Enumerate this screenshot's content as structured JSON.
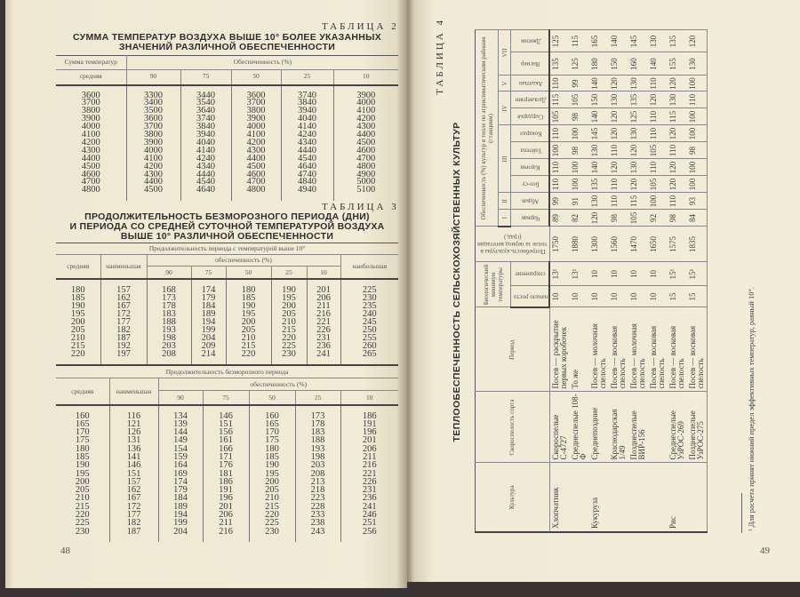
{
  "left_page": {
    "page_number": "48",
    "table2": {
      "label": "ТАБЛИЦА 2",
      "title_lines": [
        "СУММА ТЕМПЕРАТУР ВОЗДУХА ВЫШЕ 10° БОЛЕЕ УКАЗАННЫХ",
        "ЗНАЧЕНИЙ РАЗЛИЧНОЙ ОБЕСПЕЧЕННОСТИ"
      ],
      "header": {
        "group_sum": "Сумма температур",
        "group_prob": "Обеспеченность (%)",
        "col_mean": "средняя",
        "pct": [
          "90",
          "75",
          "50",
          "25",
          "10"
        ]
      },
      "rows": [
        [
          "3600",
          "3300",
          "3440",
          "3600",
          "3740",
          "3900"
        ],
        [
          "3700",
          "3400",
          "3540",
          "3700",
          "3840",
          "4000"
        ],
        [
          "3800",
          "3500",
          "3640",
          "3800",
          "3940",
          "4100"
        ],
        [
          "3900",
          "3600",
          "3740",
          "3900",
          "4040",
          "4200"
        ],
        [
          "4000",
          "3700",
          "3840",
          "4000",
          "4140",
          "4300"
        ],
        [
          "4100",
          "3800",
          "3940",
          "4100",
          "4240",
          "4400"
        ],
        [
          "4200",
          "3900",
          "4040",
          "4200",
          "4340",
          "4500"
        ],
        [
          "4300",
          "4000",
          "4140",
          "4300",
          "4440",
          "4600"
        ],
        [
          "4400",
          "4100",
          "4240",
          "4400",
          "4540",
          "4700"
        ],
        [
          "4500",
          "4200",
          "4340",
          "4500",
          "4640",
          "4800"
        ],
        [
          "4600",
          "4300",
          "4440",
          "4600",
          "4740",
          "4900"
        ],
        [
          "4700",
          "4400",
          "4540",
          "4700",
          "4840",
          "5000"
        ],
        [
          "4800",
          "4500",
          "4640",
          "4800",
          "4940",
          "5100"
        ]
      ]
    },
    "table3": {
      "label": "ТАБЛИЦА 3",
      "title_lines": [
        "ПРОДОЛЖИТЕЛЬНОСТЬ БЕЗМОРОЗНОГО ПЕРИОДА (ДНИ)",
        "И ПЕРИОДА СО СРЕДНЕЙ СУТОЧНОЙ ТЕМПЕРАТУРОЙ ВОЗДУХА",
        "ВЫШЕ 10° РАЗЛИЧНОЙ ОБЕСПЕЧЕННОСТИ"
      ],
      "part1": {
        "caption": "Продолжительность периода с температурой выше 10°",
        "col_mean": "средняя",
        "col_min": "наименьшая",
        "group_prob": "обеспеченность (%)",
        "col_max": "наибольшая",
        "pct": [
          "90",
          "75",
          "50",
          "25",
          "10"
        ],
        "rows": [
          [
            "180",
            "157",
            "168",
            "174",
            "180",
            "190",
            "201",
            "225"
          ],
          [
            "185",
            "162",
            "173",
            "179",
            "185",
            "195",
            "206",
            "230"
          ],
          [
            "190",
            "167",
            "178",
            "184",
            "190",
            "200",
            "211",
            "235"
          ],
          [
            "195",
            "172",
            "183",
            "189",
            "195",
            "205",
            "216",
            "240"
          ],
          [
            "200",
            "177",
            "188",
            "194",
            "200",
            "210",
            "221",
            "245"
          ],
          [
            "205",
            "182",
            "193",
            "199",
            "205",
            "215",
            "226",
            "250"
          ],
          [
            "210",
            "187",
            "198",
            "204",
            "210",
            "220",
            "231",
            "255"
          ],
          [
            "215",
            "192",
            "203",
            "209",
            "215",
            "225",
            "236",
            "260"
          ],
          [
            "220",
            "197",
            "208",
            "214",
            "220",
            "230",
            "241",
            "265"
          ]
        ]
      },
      "part2": {
        "caption": "Продолжительность безморозного периода",
        "col_mean": "средняя",
        "col_min": "наименьшая",
        "group_prob": "обеспеченность (%)",
        "pct": [
          "90",
          "75",
          "50",
          "25",
          "10"
        ],
        "rows": [
          [
            "160",
            "116",
            "134",
            "146",
            "160",
            "173",
            "186"
          ],
          [
            "165",
            "121",
            "139",
            "151",
            "165",
            "178",
            "191"
          ],
          [
            "170",
            "126",
            "144",
            "156",
            "170",
            "183",
            "196"
          ],
          [
            "175",
            "131",
            "149",
            "161",
            "175",
            "188",
            "201"
          ],
          [
            "180",
            "136",
            "154",
            "166",
            "180",
            "193",
            "206"
          ],
          [
            "185",
            "141",
            "159",
            "171",
            "185",
            "198",
            "211"
          ],
          [
            "190",
            "146",
            "164",
            "176",
            "190",
            "203",
            "216"
          ],
          [
            "195",
            "151",
            "169",
            "181",
            "195",
            "208",
            "221"
          ],
          [
            "200",
            "157",
            "174",
            "186",
            "200",
            "213",
            "226"
          ],
          [
            "205",
            "162",
            "179",
            "191",
            "205",
            "218",
            "231"
          ],
          [
            "210",
            "167",
            "184",
            "196",
            "210",
            "223",
            "236"
          ],
          [
            "215",
            "172",
            "189",
            "201",
            "215",
            "228",
            "241"
          ],
          [
            "220",
            "177",
            "194",
            "206",
            "220",
            "233",
            "246"
          ],
          [
            "225",
            "182",
            "199",
            "211",
            "225",
            "238",
            "251"
          ],
          [
            "230",
            "187",
            "204",
            "216",
            "230",
            "243",
            "256"
          ]
        ]
      }
    }
  },
  "right_page": {
    "page_number": "49",
    "table4": {
      "label": "ТАБЛИЦА 4",
      "title": "ТЕПЛООБЕСПЕЧЕННОСТЬ СЕЛЬСКОХОЗЯЙСТВЕННЫХ КУЛЬТУР",
      "header": {
        "culture": "Культура",
        "variety": "Скороспелость сорта",
        "period": "Период",
        "bio_min": "Биологический минимум температуры",
        "growth_start": "начало роста",
        "preservation": "сохранение",
        "heat_need": "Потребность культуры в тепле за период вегетации (град.)",
        "provision": "Обеспеченность (%) культур в тепле по агроклиматическим районам (станциям)",
        "zones": [
          "I",
          "II",
          "III",
          "IV",
          "V",
          "VII"
        ],
        "stations": [
          "Чарвак",
          "Абдык",
          "Боз-су",
          "Каунчи",
          "Тойтепа",
          "Кокарал",
          "Сырдарья",
          "Дальверзин",
          "Акалтын",
          "Янгиер",
          "Джизак"
        ]
      },
      "rows": [
        [
          "Хлопчатник",
          "Скороспелые С-4727",
          "Посев — раскрытие первых коробочек",
          "10",
          "13¹",
          "1750",
          "89",
          "99",
          "110",
          "110",
          "100",
          "110",
          "105",
          "115",
          "110",
          "135",
          "125"
        ],
        [
          "",
          "Среднеспелые 108-Ф",
          "То же",
          "10",
          "13¹",
          "1880",
          "82",
          "91",
          "100",
          "100",
          "98",
          "100",
          "98",
          "105",
          "99",
          "125",
          "115"
        ],
        [
          "Кукуруза",
          "Среднепоздние",
          "Посев — молочная спелость",
          "10",
          "10",
          "1300",
          "120",
          "130",
          "135",
          "140",
          "130",
          "145",
          "140",
          "150",
          "140",
          "180",
          "165"
        ],
        [
          "",
          "Краснодарская 1/49",
          "Посев — восковая спелость",
          "10",
          "10",
          "1560",
          "98",
          "110",
          "110",
          "120",
          "110",
          "120",
          "120",
          "130",
          "120",
          "150",
          "140"
        ],
        [
          "",
          "Позднеспелые ВИР-156",
          "Посев — молочная спелость",
          "10",
          "10",
          "1470",
          "105",
          "115",
          "120",
          "130",
          "120",
          "130",
          "125",
          "135",
          "130",
          "160",
          "145"
        ],
        [
          "",
          "",
          "Посев — восковая спелость",
          "10",
          "10",
          "1650",
          "92",
          "100",
          "105",
          "110",
          "105",
          "110",
          "110",
          "120",
          "110",
          "140",
          "130"
        ],
        [
          "Рис",
          "Среднеспелые УзРОС-269",
          "Посев — восковая спелость",
          "15",
          "15¹",
          "1575",
          "98",
          "110",
          "120",
          "120",
          "110",
          "120",
          "115",
          "130",
          "120",
          "155",
          "135"
        ],
        [
          "",
          "Позднеспелые УзРОС-275",
          "Посев — восковая спелость",
          "15",
          "15¹",
          "1835",
          "84",
          "93",
          "100",
          "100",
          "98",
          "100",
          "100",
          "110",
          "100",
          "130",
          "120"
        ]
      ],
      "footnote": "¹ Для расчета принят нижний предел эффективных температур, равный 10°."
    }
  }
}
